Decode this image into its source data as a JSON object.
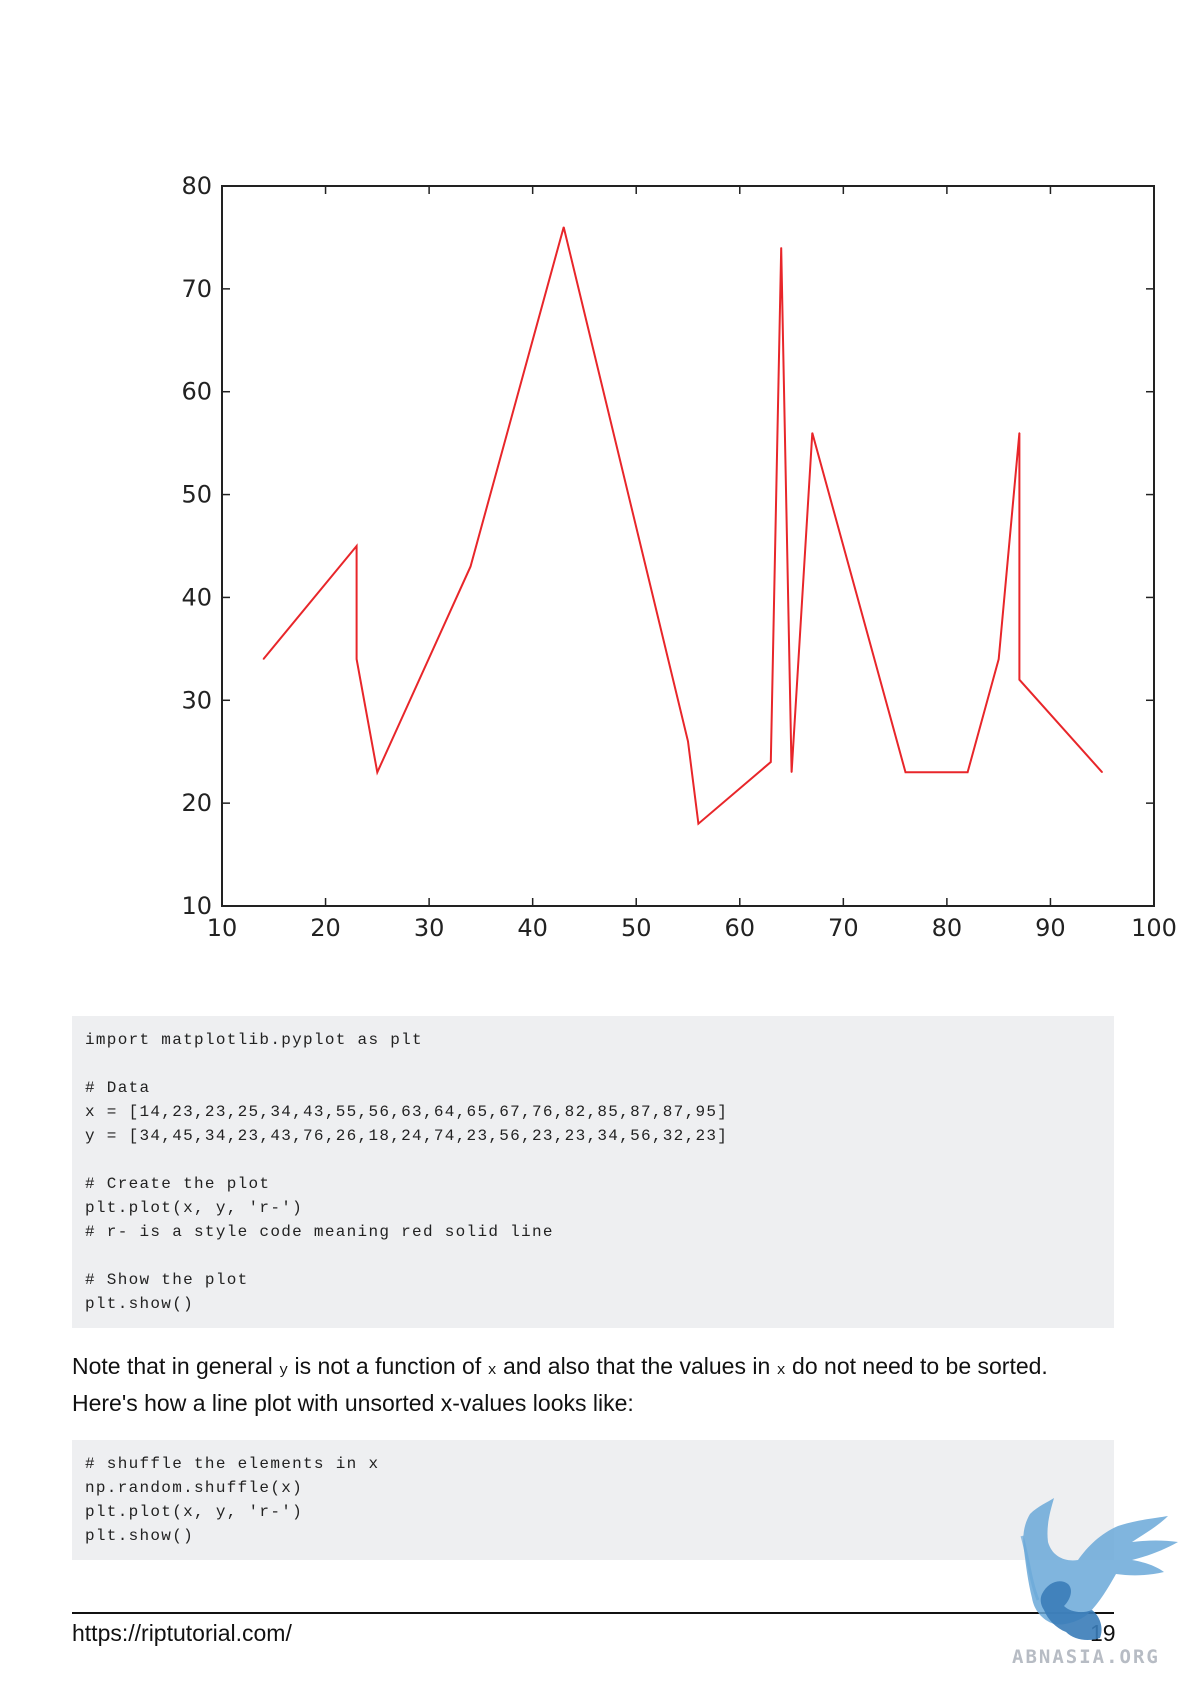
{
  "chart_data": {
    "type": "line",
    "x": [
      14,
      23,
      23,
      25,
      34,
      43,
      55,
      56,
      63,
      64,
      65,
      67,
      76,
      82,
      85,
      87,
      87,
      95
    ],
    "series": [
      {
        "values": [
          34,
          45,
          34,
          23,
          43,
          76,
          26,
          18,
          24,
          74,
          23,
          56,
          23,
          23,
          34,
          56,
          32,
          23
        ],
        "color": "#e8262a"
      }
    ],
    "xlim": [
      10,
      100
    ],
    "ylim": [
      10,
      80
    ],
    "xticks": [
      10,
      20,
      30,
      40,
      50,
      60,
      70,
      80,
      90,
      100
    ],
    "yticks": [
      10,
      20,
      30,
      40,
      50,
      60,
      70,
      80
    ],
    "title": "",
    "xlabel": "",
    "ylabel": "",
    "grid": false
  },
  "code_block_1": {
    "lines": [
      "import matplotlib.pyplot as plt",
      "",
      "# Data",
      "x = [14,23,23,25,34,43,55,56,63,64,65,67,76,82,85,87,87,95]",
      "y = [34,45,34,23,43,76,26,18,24,74,23,56,23,23,34,56,32,23]",
      "",
      "# Create the plot",
      "plt.plot(x, y, 'r-')",
      "# r- is a style code meaning red solid line",
      "",
      "# Show the plot",
      "plt.show()"
    ]
  },
  "note": {
    "t1": "Note that in general ",
    "c1": "y",
    "t2": " is not a function of ",
    "c2": "x",
    "t3": " and also that the values in ",
    "c3": "x",
    "t4": " do not need to be sorted.",
    "line2": "Here's how a line plot with unsorted x-values looks like:"
  },
  "code_block_2": {
    "lines": [
      "# shuffle the elements in x",
      "np.random.shuffle(x)",
      "plt.plot(x, y, 'r-')",
      "plt.show()"
    ]
  },
  "footer": {
    "url": "https://riptutorial.com/",
    "page_number": "19"
  },
  "watermark": {
    "text": "ABNASIA.ORG",
    "icon": "griffin-logo-icon"
  }
}
